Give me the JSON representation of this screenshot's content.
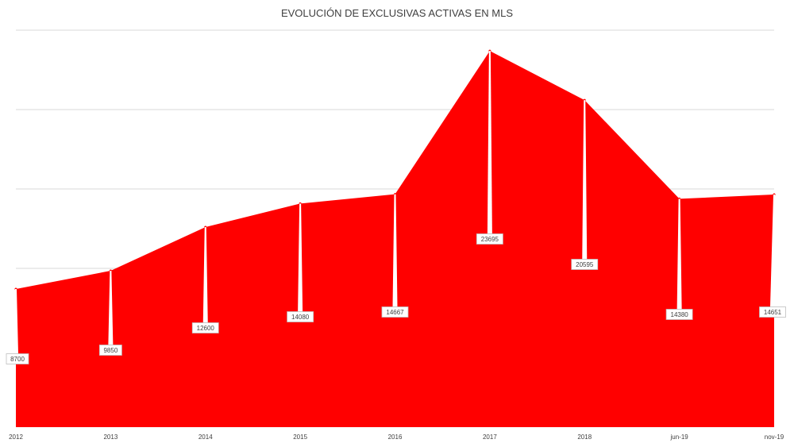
{
  "chart_data": {
    "type": "area",
    "title": "EVOLUCIÓN DE EXCLUSIVAS ACTIVAS EN MLS",
    "categories": [
      "2012",
      "2013",
      "2014",
      "2015",
      "2016",
      "2017",
      "2018",
      "jun-19",
      "nov-19"
    ],
    "series": [
      {
        "values": [
          8700,
          9850,
          12600,
          14080,
          14667,
          23695,
          20595,
          14380,
          14651
        ]
      }
    ],
    "data_labels": [
      "8700",
      "9850",
      "12600",
      "14080",
      "14667",
      "23695",
      "20595",
      "14380",
      "14651"
    ],
    "ylim": [
      0,
      25000
    ],
    "grid": true,
    "legend": "none",
    "colors": {
      "fill": "#ff0000",
      "grid": "#d9d9d9",
      "text": "#404040"
    }
  }
}
